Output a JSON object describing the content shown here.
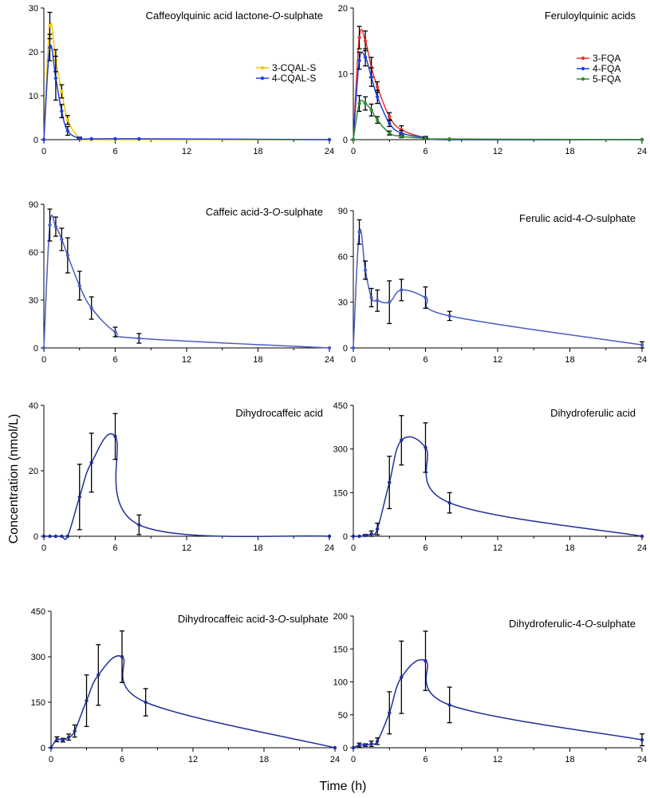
{
  "figure": {
    "ylabel": "Concentration (nmol/L)",
    "xlabel": "Time (h)"
  },
  "chart_data": [
    {
      "type": "line",
      "title": {
        "pre": "Caffeoylquinic acid lactone-",
        "ital": "O",
        "post": "-sulphate"
      },
      "ylim": [
        0,
        30
      ],
      "yticks": [
        "0",
        "10",
        "20",
        "30"
      ],
      "xlim": [
        0,
        24
      ],
      "xticks": [
        "0",
        "6",
        "12",
        "18",
        "24"
      ],
      "legend": "right",
      "series": [
        {
          "name": "3-CQAL-S",
          "color": "#f2c500",
          "x": [
            0,
            0.5,
            1,
            1.5,
            2,
            3,
            4,
            6,
            8,
            24
          ],
          "y": [
            0,
            26,
            18,
            11,
            4.5,
            0.4,
            0,
            0,
            0,
            0
          ],
          "err": [
            0,
            3,
            2.5,
            1.5,
            1,
            0.2,
            0,
            0,
            0,
            0
          ]
        },
        {
          "name": "4-CQAL-S",
          "color": "#1f3fd8",
          "x": [
            0,
            0.5,
            1,
            1.5,
            2,
            3,
            4,
            6,
            8,
            24
          ],
          "y": [
            0,
            21,
            14,
            6.5,
            2,
            0.3,
            0.2,
            0.2,
            0.2,
            0
          ],
          "err": [
            0,
            3,
            5,
            1.5,
            1,
            0.2,
            0,
            0,
            0,
            0
          ]
        }
      ]
    },
    {
      "type": "line",
      "title": {
        "pre": "Feruloylquinic acids",
        "ital": "",
        "post": ""
      },
      "ylim": [
        0,
        20
      ],
      "yticks": [
        "0",
        "10",
        "20"
      ],
      "xlim": [
        0,
        24
      ],
      "xticks": [
        "0",
        "6",
        "12",
        "18",
        "24"
      ],
      "legend": "right",
      "series": [
        {
          "name": "3-FQA",
          "color": "#e8322a",
          "x": [
            0,
            0.5,
            1,
            1.5,
            2,
            3,
            4,
            6,
            8,
            24
          ],
          "y": [
            0,
            15.5,
            15,
            11,
            8,
            3.5,
            1.5,
            0.3,
            0,
            0
          ],
          "err": [
            0,
            1.7,
            1.5,
            1.5,
            0.8,
            0.6,
            0.6,
            0.2,
            0,
            0
          ]
        },
        {
          "name": "4-FQA",
          "color": "#1f3fd8",
          "x": [
            0,
            0.5,
            1,
            1.5,
            2,
            3,
            4,
            6,
            8,
            24
          ],
          "y": [
            0,
            12,
            12.5,
            9.5,
            6.5,
            2.5,
            1,
            0.3,
            0,
            0
          ],
          "err": [
            0,
            1.3,
            1.3,
            1.4,
            1,
            0.5,
            0.4,
            0.1,
            0,
            0
          ]
        },
        {
          "name": "5-FQA",
          "color": "#2e8b2e",
          "x": [
            0,
            0.5,
            1,
            1.5,
            2,
            3,
            4,
            6,
            8,
            24
          ],
          "y": [
            0,
            5.5,
            5.5,
            4.5,
            3,
            1,
            0.5,
            0.2,
            0.1,
            0
          ],
          "err": [
            0,
            1.2,
            1,
            0.9,
            0.5,
            0.3,
            0.2,
            0.1,
            0,
            0
          ]
        }
      ]
    },
    {
      "type": "line",
      "title": {
        "pre": "Caffeic acid-3-",
        "ital": "O",
        "post": "-sulphate"
      },
      "ylim": [
        0,
        90
      ],
      "yticks": [
        "0",
        "30",
        "60",
        "90"
      ],
      "xlim": [
        0,
        24
      ],
      "xticks": [
        "0",
        "6",
        "12",
        "18",
        "24"
      ],
      "series": [
        {
          "name": "",
          "color": "#4a5dbf",
          "x": [
            0,
            0.5,
            1,
            1.5,
            2,
            3,
            4,
            6,
            8,
            24
          ],
          "y": [
            0,
            77,
            76,
            68,
            58,
            39,
            25,
            10,
            6,
            0
          ],
          "err": [
            0,
            10,
            6,
            7,
            11,
            9,
            7,
            3,
            3,
            0
          ]
        }
      ]
    },
    {
      "type": "line",
      "title": {
        "pre": "Ferulic acid-4-",
        "ital": "O",
        "post": "-sulphate"
      },
      "ylim": [
        0,
        90
      ],
      "yticks": [
        "0",
        "30",
        "60",
        "90"
      ],
      "xlim": [
        0,
        24
      ],
      "xticks": [
        "0",
        "6",
        "12",
        "18",
        "24"
      ],
      "series": [
        {
          "name": "",
          "color": "#4a5dbf",
          "x": [
            0,
            0.5,
            1,
            1.5,
            2,
            3,
            4,
            6,
            8,
            24
          ],
          "y": [
            0,
            76,
            51,
            33,
            31,
            30,
            38,
            33,
            21,
            2
          ],
          "err": [
            0,
            8,
            6,
            6,
            7,
            14,
            7,
            7,
            3,
            2
          ]
        }
      ]
    },
    {
      "type": "line",
      "title": {
        "pre": "Dihydrocaffeic acid",
        "ital": "",
        "post": ""
      },
      "ylim": [
        0,
        40
      ],
      "yticks": [
        "0",
        "20",
        "40"
      ],
      "xlim": [
        0,
        24
      ],
      "xticks": [
        "0",
        "6",
        "12",
        "18",
        "24"
      ],
      "series": [
        {
          "name": "",
          "color": "#1f2f9a",
          "x": [
            0,
            0.5,
            1,
            1.5,
            2,
            3,
            4,
            6,
            8,
            24
          ],
          "y": [
            0,
            0,
            0,
            0,
            0,
            12,
            22.5,
            30.5,
            3.5,
            0
          ],
          "err": [
            0,
            0,
            0,
            0,
            0,
            10,
            9,
            7,
            3,
            0
          ]
        }
      ]
    },
    {
      "type": "line",
      "title": {
        "pre": "Dihydroferulic acid",
        "ital": "",
        "post": ""
      },
      "ylim": [
        0,
        450
      ],
      "yticks": [
        "0",
        "150",
        "300",
        "450"
      ],
      "xlim": [
        0,
        24
      ],
      "xticks": [
        "0",
        "6",
        "12",
        "18",
        "24"
      ],
      "series": [
        {
          "name": "",
          "color": "#1f2f9a",
          "x": [
            0,
            0.5,
            1,
            1.5,
            2,
            3,
            4,
            6,
            8,
            24
          ],
          "y": [
            0,
            0,
            3,
            8,
            25,
            185,
            330,
            305,
            115,
            0
          ],
          "err": [
            0,
            0,
            3,
            10,
            20,
            90,
            85,
            85,
            35,
            0
          ]
        }
      ]
    },
    {
      "type": "line",
      "title": {
        "pre": "Dihydrocaffeic acid-3-",
        "ital": "O",
        "post": "-sulphate"
      },
      "ylim": [
        0,
        450
      ],
      "yticks": [
        "0",
        "150",
        "300",
        "450"
      ],
      "xlim": [
        0,
        24
      ],
      "xticks": [
        "0",
        "6",
        "12",
        "18",
        "24"
      ],
      "series": [
        {
          "name": "",
          "color": "#1f2f9a",
          "x": [
            0,
            0.5,
            1,
            1.5,
            2,
            3,
            4,
            6,
            8,
            24
          ],
          "y": [
            0,
            28,
            25,
            35,
            55,
            155,
            240,
            300,
            150,
            0
          ],
          "err": [
            0,
            8,
            6,
            10,
            20,
            85,
            100,
            85,
            45,
            0
          ]
        }
      ]
    },
    {
      "type": "line",
      "title": {
        "pre": "Dihydroferulic-4-",
        "ital": "O",
        "post": "-sulphate"
      },
      "ylim": [
        0,
        200
      ],
      "yticks": [
        "0",
        "50",
        "100",
        "150",
        "200"
      ],
      "xlim": [
        0,
        24
      ],
      "xticks": [
        "0",
        "6",
        "12",
        "18",
        "24"
      ],
      "series": [
        {
          "name": "",
          "color": "#1f2f9a",
          "x": [
            0,
            0.5,
            1,
            1.5,
            2,
            3,
            4,
            6,
            8,
            24
          ],
          "y": [
            0,
            4,
            4,
            6,
            10,
            53,
            107,
            132,
            65,
            12
          ],
          "err": [
            0,
            3,
            2,
            4,
            5,
            32,
            55,
            45,
            27,
            9
          ]
        }
      ]
    }
  ]
}
